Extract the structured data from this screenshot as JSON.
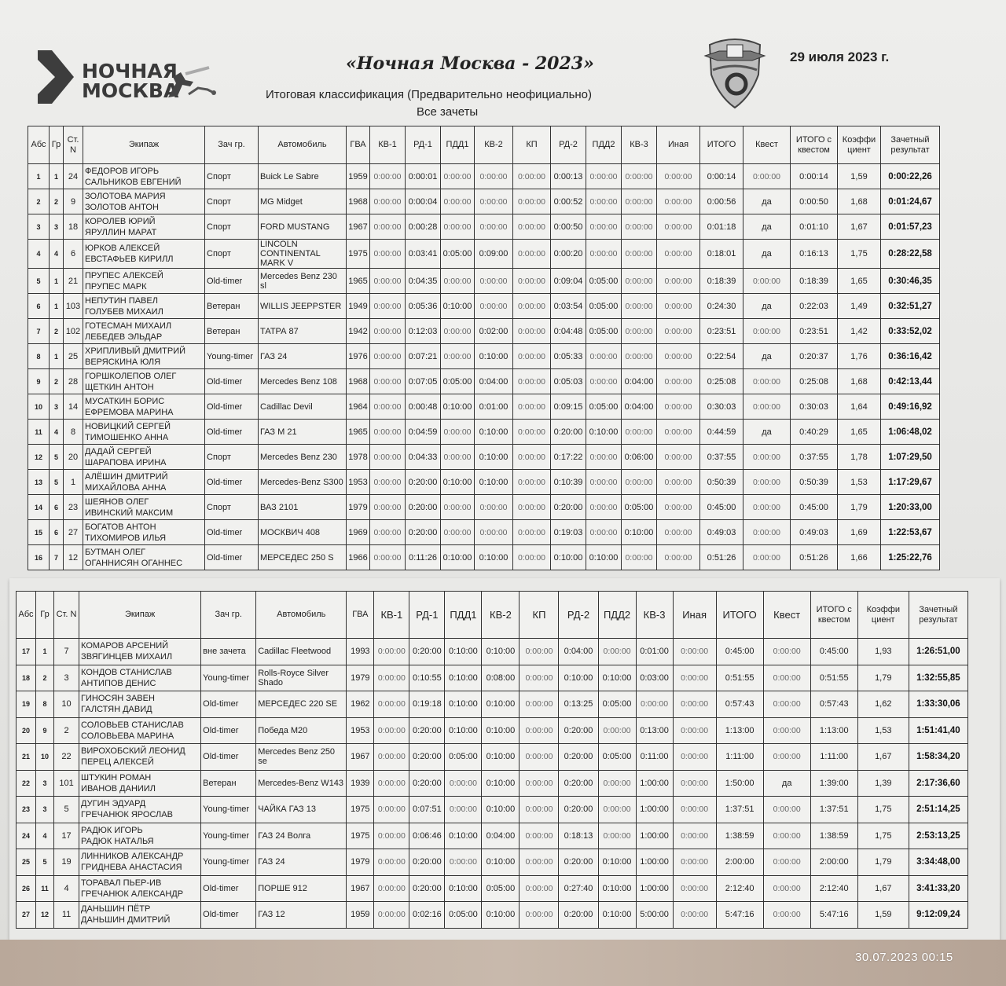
{
  "header": {
    "logo_text": "НОЧНАЯ МОСКВА",
    "title": "«Ночная Москва - 2023»",
    "subtitle": "Итоговая классификация (Предварительно неофициально)",
    "subtitle2": "Все зачеты",
    "date": "29 июля 2023 г."
  },
  "columns": [
    "Абс",
    "Гр",
    "Ст. N",
    "Экипаж",
    "Зач гр.",
    "Автомобиль",
    "ГВА",
    "КВ-1",
    "РД-1",
    "ПДД1",
    "КВ-2",
    "КП",
    "РД-2",
    "ПДД2",
    "КВ-3",
    "Иная",
    "ИТОГО",
    "Квест",
    "ИТОГО с квестом",
    "Коэффи циент",
    "Зачетный результат"
  ],
  "top_rows": [
    [
      "1",
      "1",
      "24",
      "ФЕДОРОВ ИГОРЬ",
      "САЛЬНИКОВ ЕВГЕНИЙ",
      "Спорт",
      "Buick Le Sabre",
      "1959",
      "0:00:00",
      "0:00:01",
      "0:00:00",
      "0:00:00",
      "0:00:00",
      "0:00:13",
      "0:00:00",
      "0:00:00",
      "0:00:00",
      "0:00:14",
      "0:00:00",
      "0:00:14",
      "1,59",
      "0:00:22,26"
    ],
    [
      "2",
      "2",
      "9",
      "ЗОЛОТОВА МАРИЯ",
      "ЗОЛОТОВ АНТОН",
      "Спорт",
      "MG Midget",
      "1968",
      "0:00:00",
      "0:00:04",
      "0:00:00",
      "0:00:00",
      "0:00:00",
      "0:00:52",
      "0:00:00",
      "0:00:00",
      "0:00:00",
      "0:00:56",
      "да",
      "0:00:50",
      "1,68",
      "0:01:24,67"
    ],
    [
      "3",
      "3",
      "18",
      "КОРОЛЕВ ЮРИЙ",
      "ЯРУЛЛИН МАРАТ",
      "Спорт",
      "FORD MUSTANG",
      "1967",
      "0:00:00",
      "0:00:28",
      "0:00:00",
      "0:00:00",
      "0:00:00",
      "0:00:50",
      "0:00:00",
      "0:00:00",
      "0:00:00",
      "0:01:18",
      "да",
      "0:01:10",
      "1,67",
      "0:01:57,23"
    ],
    [
      "4",
      "4",
      "6",
      "ЮРКОВ АЛЕКСЕЙ",
      "ЕВСТАФЬЕВ КИРИЛЛ",
      "Спорт",
      "LINCOLN CONTINENTAL MARK V",
      "1975",
      "0:00:00",
      "0:03:41",
      "0:05:00",
      "0:09:00",
      "0:00:00",
      "0:00:20",
      "0:00:00",
      "0:00:00",
      "0:00:00",
      "0:18:01",
      "да",
      "0:16:13",
      "1,75",
      "0:28:22,58"
    ],
    [
      "5",
      "1",
      "21",
      "ПРУПЕС АЛЕКСЕЙ",
      "ПРУПЕС МАРК",
      "Old-timer",
      "Mercedes Benz 230 sl",
      "1965",
      "0:00:00",
      "0:04:35",
      "0:00:00",
      "0:00:00",
      "0:00:00",
      "0:09:04",
      "0:05:00",
      "0:00:00",
      "0:00:00",
      "0:18:39",
      "0:00:00",
      "0:18:39",
      "1,65",
      "0:30:46,35"
    ],
    [
      "6",
      "1",
      "103",
      "НЕПУТИН ПАВЕЛ",
      "ГОЛУБЕВ МИХАИЛ",
      "Ветеран",
      "WILLIS JEEPPSTER",
      "1949",
      "0:00:00",
      "0:05:36",
      "0:10:00",
      "0:00:00",
      "0:00:00",
      "0:03:54",
      "0:05:00",
      "0:00:00",
      "0:00:00",
      "0:24:30",
      "да",
      "0:22:03",
      "1,49",
      "0:32:51,27"
    ],
    [
      "7",
      "2",
      "102",
      "ГОТЕСМАН МИХАИЛ",
      "ЛЕБЕДЕВ ЭЛЬДАР",
      "Ветеран",
      "ТАТРА 87",
      "1942",
      "0:00:00",
      "0:12:03",
      "0:00:00",
      "0:02:00",
      "0:00:00",
      "0:04:48",
      "0:05:00",
      "0:00:00",
      "0:00:00",
      "0:23:51",
      "0:00:00",
      "0:23:51",
      "1,42",
      "0:33:52,02"
    ],
    [
      "8",
      "1",
      "25",
      "ХРИПЛИВЫЙ ДМИТРИЙ",
      "ВЕРЯСКИНА ЮЛЯ",
      "Young-timer",
      "ГАЗ 24",
      "1976",
      "0:00:00",
      "0:07:21",
      "0:00:00",
      "0:10:00",
      "0:00:00",
      "0:05:33",
      "0:00:00",
      "0:00:00",
      "0:00:00",
      "0:22:54",
      "да",
      "0:20:37",
      "1,76",
      "0:36:16,42"
    ],
    [
      "9",
      "2",
      "28",
      "ГОРШКОЛЕПОВ ОЛЕГ",
      "ЩЕТКИН АНТОН",
      "Old-timer",
      "Mercedes Benz 108",
      "1968",
      "0:00:00",
      "0:07:05",
      "0:05:00",
      "0:04:00",
      "0:00:00",
      "0:05:03",
      "0:00:00",
      "0:04:00",
      "0:00:00",
      "0:25:08",
      "0:00:00",
      "0:25:08",
      "1,68",
      "0:42:13,44"
    ],
    [
      "10",
      "3",
      "14",
      "МУСАТКИН БОРИС",
      "ЕФРЕМОВА МАРИНА",
      "Old-timer",
      "Cadillac Devil",
      "1964",
      "0:00:00",
      "0:00:48",
      "0:10:00",
      "0:01:00",
      "0:00:00",
      "0:09:15",
      "0:05:00",
      "0:04:00",
      "0:00:00",
      "0:30:03",
      "0:00:00",
      "0:30:03",
      "1,64",
      "0:49:16,92"
    ],
    [
      "11",
      "4",
      "8",
      "НОВИЦКИЙ СЕРГЕЙ",
      "ТИМОШЕНКО АННА",
      "Old-timer",
      "ГАЗ  М 21",
      "1965",
      "0:00:00",
      "0:04:59",
      "0:00:00",
      "0:10:00",
      "0:00:00",
      "0:20:00",
      "0:10:00",
      "0:00:00",
      "0:00:00",
      "0:44:59",
      "да",
      "0:40:29",
      "1,65",
      "1:06:48,02"
    ],
    [
      "12",
      "5",
      "20",
      "ДАДАЙ СЕРГЕЙ",
      "ШАРАПОВА ИРИНА",
      "Спорт",
      "Mercedes Benz 230",
      "1978",
      "0:00:00",
      "0:04:33",
      "0:00:00",
      "0:10:00",
      "0:00:00",
      "0:17:22",
      "0:00:00",
      "0:06:00",
      "0:00:00",
      "0:37:55",
      "0:00:00",
      "0:37:55",
      "1,78",
      "1:07:29,50"
    ],
    [
      "13",
      "5",
      "1",
      "АЛЁШИН ДМИТРИЙ",
      "МИХАЙЛОВА АННА",
      "Old-timer",
      "Mercedes-Benz S300",
      "1953",
      "0:00:00",
      "0:20:00",
      "0:10:00",
      "0:10:00",
      "0:00:00",
      "0:10:39",
      "0:00:00",
      "0:00:00",
      "0:00:00",
      "0:50:39",
      "0:00:00",
      "0:50:39",
      "1,53",
      "1:17:29,67"
    ],
    [
      "14",
      "6",
      "23",
      "ШЕЯНОВ ОЛЕГ",
      "ИВИНСКИЙ МАКСИМ",
      "Спорт",
      "ВАЗ 2101",
      "1979",
      "0:00:00",
      "0:20:00",
      "0:00:00",
      "0:00:00",
      "0:00:00",
      "0:20:00",
      "0:00:00",
      "0:05:00",
      "0:00:00",
      "0:45:00",
      "0:00:00",
      "0:45:00",
      "1,79",
      "1:20:33,00"
    ],
    [
      "15",
      "6",
      "27",
      "БОГАТОВ АНТОН",
      "ТИХОМИРОВ ИЛЬЯ",
      "Old-timer",
      "МОСКВИЧ 408",
      "1969",
      "0:00:00",
      "0:20:00",
      "0:00:00",
      "0:00:00",
      "0:00:00",
      "0:19:03",
      "0:00:00",
      "0:10:00",
      "0:00:00",
      "0:49:03",
      "0:00:00",
      "0:49:03",
      "1,69",
      "1:22:53,67"
    ],
    [
      "16",
      "7",
      "12",
      "БУТМАН ОЛЕГ",
      "ОГАННИСЯН ОГАННЕС",
      "Old-timer",
      "МЕРСЕДЕС 250 S",
      "1966",
      "0:00:00",
      "0:11:26",
      "0:10:00",
      "0:10:00",
      "0:00:00",
      "0:10:00",
      "0:10:00",
      "0:00:00",
      "0:00:00",
      "0:51:26",
      "0:00:00",
      "0:51:26",
      "1,66",
      "1:25:22,76"
    ]
  ],
  "bottom_rows": [
    [
      "17",
      "1",
      "7",
      "КОМАРОВ АРСЕНИЙ",
      "ЗВЯГИНЦЕВ МИХАИЛ",
      "вне зачета",
      "Cadillac Fleetwood",
      "1993",
      "0:00:00",
      "0:20:00",
      "0:10:00",
      "0:10:00",
      "0:00:00",
      "0:04:00",
      "0:00:00",
      "0:01:00",
      "0:00:00",
      "0:45:00",
      "0:00:00",
      "0:45:00",
      "1,93",
      "1:26:51,00"
    ],
    [
      "18",
      "2",
      "3",
      "КОНДОВ СТАНИСЛАВ",
      "АНТИПОВ ДЕНИС",
      "Young-timer",
      "Rolls-Royce Silver Shado",
      "1979",
      "0:00:00",
      "0:10:55",
      "0:10:00",
      "0:08:00",
      "0:00:00",
      "0:10:00",
      "0:10:00",
      "0:03:00",
      "0:00:00",
      "0:51:55",
      "0:00:00",
      "0:51:55",
      "1,79",
      "1:32:55,85"
    ],
    [
      "19",
      "8",
      "10",
      "ГИНОСЯН ЗАВЕН",
      "ГАЛСТЯН ДАВИД",
      "Old-timer",
      "МЕРСЕДЕС 220 SE",
      "1962",
      "0:00:00",
      "0:19:18",
      "0:10:00",
      "0:10:00",
      "0:00:00",
      "0:13:25",
      "0:05:00",
      "0:00:00",
      "0:00:00",
      "0:57:43",
      "0:00:00",
      "0:57:43",
      "1,62",
      "1:33:30,06"
    ],
    [
      "20",
      "9",
      "2",
      "СОЛОВЬЕВ СТАНИСЛАВ",
      "СОЛОВЬЕВА МАРИНА",
      "Old-timer",
      "Победа М20",
      "1953",
      "0:00:00",
      "0:20:00",
      "0:10:00",
      "0:10:00",
      "0:00:00",
      "0:20:00",
      "0:00:00",
      "0:13:00",
      "0:00:00",
      "1:13:00",
      "0:00:00",
      "1:13:00",
      "1,53",
      "1:51:41,40"
    ],
    [
      "21",
      "10",
      "22",
      "ВИРОХОБСКИЙ ЛЕОНИД",
      "ПЕРЕЦ АЛЕКСЕЙ",
      "Old-timer",
      "Mercedes Benz 250 se",
      "1967",
      "0:00:00",
      "0:20:00",
      "0:05:00",
      "0:10:00",
      "0:00:00",
      "0:20:00",
      "0:05:00",
      "0:11:00",
      "0:00:00",
      "1:11:00",
      "0:00:00",
      "1:11:00",
      "1,67",
      "1:58:34,20"
    ],
    [
      "22",
      "3",
      "101",
      "ШТУКИН РОМАН",
      "ИВАНОВ ДАНИИЛ",
      "Ветеран",
      "Mercedes-Benz W143",
      "1939",
      "0:00:00",
      "0:20:00",
      "0:00:00",
      "0:10:00",
      "0:00:00",
      "0:20:00",
      "0:00:00",
      "1:00:00",
      "0:00:00",
      "1:50:00",
      "да",
      "1:39:00",
      "1,39",
      "2:17:36,60"
    ],
    [
      "23",
      "3",
      "5",
      "ДУГИН ЭДУАРД",
      "ГРЕЧАНЮК ЯРОСЛАВ",
      "Young-timer",
      "ЧАЙКА ГАЗ 13",
      "1975",
      "0:00:00",
      "0:07:51",
      "0:00:00",
      "0:10:00",
      "0:00:00",
      "0:20:00",
      "0:00:00",
      "1:00:00",
      "0:00:00",
      "1:37:51",
      "0:00:00",
      "1:37:51",
      "1,75",
      "2:51:14,25"
    ],
    [
      "24",
      "4",
      "17",
      "РАДЮК ИГОРЬ",
      "РАДЮК НАТАЛЬЯ",
      "Young-timer",
      "ГАЗ 24 Волга",
      "1975",
      "0:00:00",
      "0:06:46",
      "0:10:00",
      "0:04:00",
      "0:00:00",
      "0:18:13",
      "0:00:00",
      "1:00:00",
      "0:00:00",
      "1:38:59",
      "0:00:00",
      "1:38:59",
      "1,75",
      "2:53:13,25"
    ],
    [
      "25",
      "5",
      "19",
      "ЛИННИКОВ АЛЕКСАНДР",
      "ГРИДНЕВА АНАСТАСИЯ",
      "Young-timer",
      "ГАЗ 24",
      "1979",
      "0:00:00",
      "0:20:00",
      "0:00:00",
      "0:10:00",
      "0:00:00",
      "0:20:00",
      "0:10:00",
      "1:00:00",
      "0:00:00",
      "2:00:00",
      "0:00:00",
      "2:00:00",
      "1,79",
      "3:34:48,00"
    ],
    [
      "26",
      "11",
      "4",
      "ТОРАВАЛ ПЬЕР-ИВ",
      "ГРЕЧАНЮК АЛЕКСАНДР",
      "Old-timer",
      "ПОРШЕ   912",
      "1967",
      "0:00:00",
      "0:20:00",
      "0:10:00",
      "0:05:00",
      "0:00:00",
      "0:27:40",
      "0:10:00",
      "1:00:00",
      "0:00:00",
      "2:12:40",
      "0:00:00",
      "2:12:40",
      "1,67",
      "3:41:33,20"
    ],
    [
      "27",
      "12",
      "11",
      "ДАНЬШИН ПЁТР",
      "ДАНЬШИН ДМИТРИЙ",
      "Old-timer",
      "ГАЗ 12",
      "1959",
      "0:00:00",
      "0:02:16",
      "0:05:00",
      "0:10:00",
      "0:00:00",
      "0:20:00",
      "0:10:00",
      "5:00:00",
      "0:00:00",
      "5:47:16",
      "0:00:00",
      "5:47:16",
      "1,59",
      "9:12:09,24"
    ]
  ],
  "photo_timestamp": "30.07.2023 00:15"
}
